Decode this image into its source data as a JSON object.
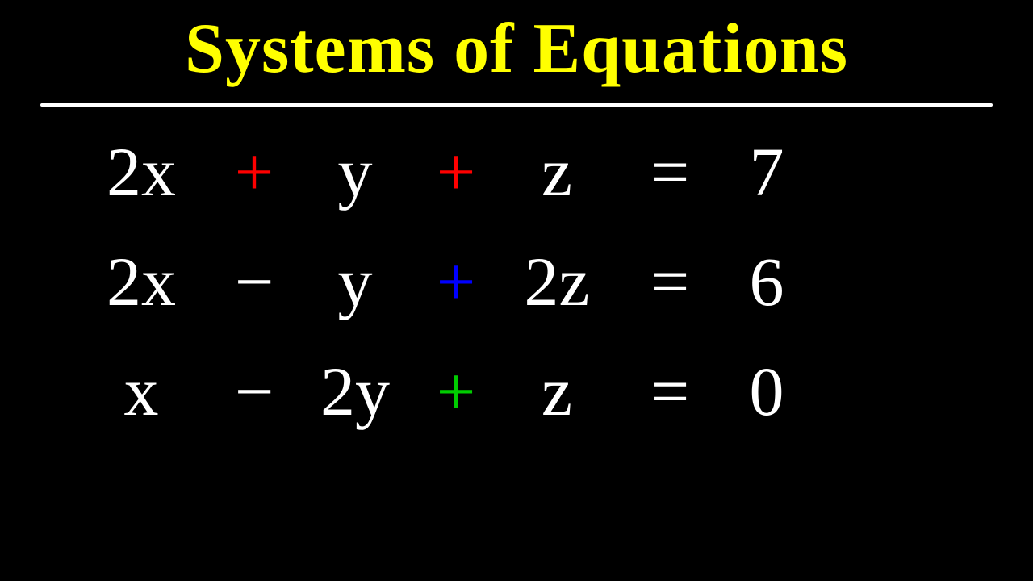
{
  "title": "Systems of Equations",
  "colors": {
    "background": "#000000",
    "title": "#ffff00",
    "default_text": "#ffffff",
    "red": "#ff0000",
    "blue": "#0000ff",
    "green": "#00cc00"
  },
  "typography": {
    "title_fontsize": 88,
    "equation_fontsize": 86,
    "font_family": "Comic Sans MS"
  },
  "underline": {
    "color": "#ffffff",
    "thickness": 4
  },
  "equations": [
    {
      "col1": "2x",
      "op1": {
        "text": "+",
        "color": "#ff0000"
      },
      "col2": "y",
      "op2": {
        "text": "+",
        "color": "#ff0000"
      },
      "col3": "z",
      "eq": "=",
      "rhs": "7"
    },
    {
      "col1": "2x",
      "op1": {
        "text": "−",
        "color": "#ffffff"
      },
      "col2": "y",
      "op2": {
        "text": "+",
        "color": "#0000ff"
      },
      "col3": "2z",
      "eq": "=",
      "rhs": "6"
    },
    {
      "col1": "x",
      "op1": {
        "text": "−",
        "color": "#ffffff"
      },
      "col2": "2y",
      "op2": {
        "text": "+",
        "color": "#00cc00"
      },
      "col3": "z",
      "eq": "=",
      "rhs": "0"
    }
  ]
}
